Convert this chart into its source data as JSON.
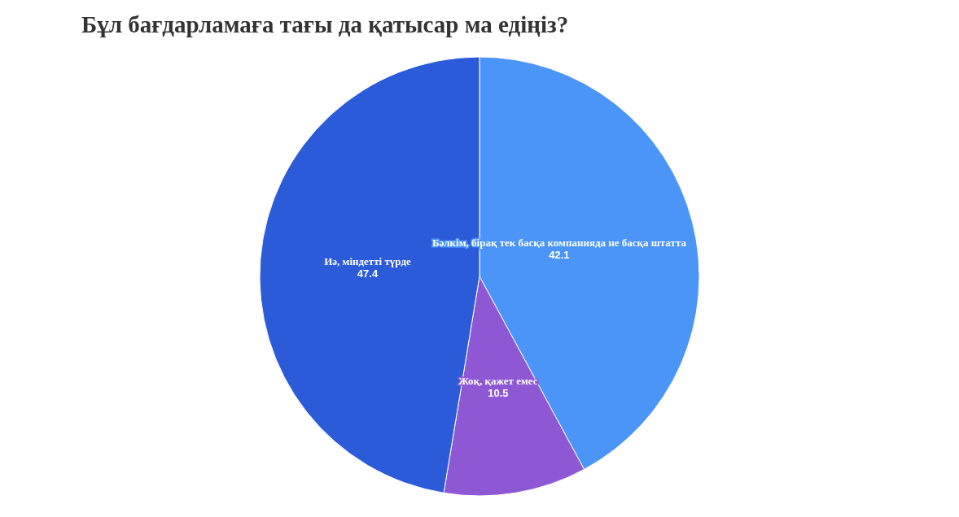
{
  "chart_data": {
    "type": "pie",
    "title": "Бұл бағдарламаға тағы да қатысар ма едіңіз?",
    "categories": [
      "Бәлкім, бірақ тек басқа компанияда не басқа штатта",
      "Жоқ, қажет емес",
      "Иә, міндетті түрде"
    ],
    "values": [
      42.1,
      10.5,
      47.4
    ],
    "colors": [
      "#4a95f7",
      "#8e58d4",
      "#2c5bd9"
    ],
    "data_labels": true,
    "legend": false
  }
}
